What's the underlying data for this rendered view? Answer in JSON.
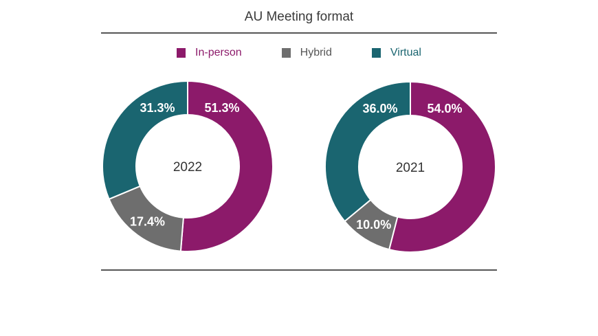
{
  "chart_data": [
    {
      "type": "pie",
      "title": "AU Meeting format",
      "center_label": "2022",
      "categories": [
        "In-person",
        "Hybrid",
        "Virtual"
      ],
      "values": [
        51.3,
        17.4,
        31.3
      ],
      "labels": [
        "51.3%",
        "17.4%",
        "31.3%"
      ]
    },
    {
      "type": "pie",
      "title": "AU Meeting format",
      "center_label": "2021",
      "categories": [
        "In-person",
        "Hybrid",
        "Virtual"
      ],
      "values": [
        54.0,
        10.0,
        36.0
      ],
      "labels": [
        "54.0%",
        "10.0%",
        "36.0%"
      ]
    }
  ],
  "title": "AU Meeting format",
  "legend": [
    {
      "label": "In-person",
      "color": "#8c1a6a"
    },
    {
      "label": "Hybrid",
      "color": "#6e6e6e"
    },
    {
      "label": "Virtual",
      "color": "#1a6570"
    }
  ]
}
